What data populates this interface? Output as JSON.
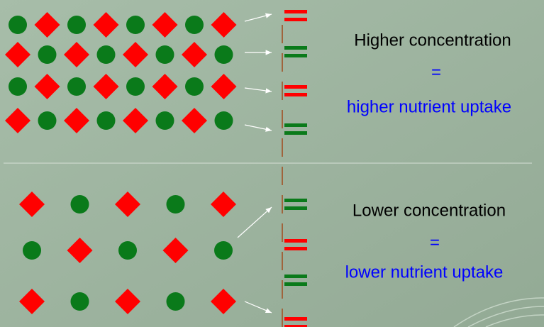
{
  "upper": {
    "label": "Higher concentration",
    "equals": "=",
    "result": "higher nutrient uptake"
  },
  "lower": {
    "label": "Lower concentration",
    "equals": "=",
    "result": "lower nutrient uptake"
  }
}
